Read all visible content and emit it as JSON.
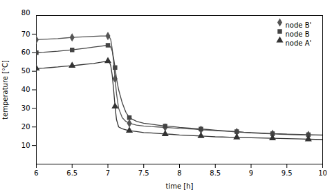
{
  "chart_data": {
    "type": "line",
    "xlabel": "time [h]",
    "ylabel": "temperature [°C]",
    "xlim": [
      6,
      10
    ],
    "ylim": [
      0,
      80
    ],
    "xticks": [
      6,
      6.5,
      7,
      7.5,
      8,
      8.5,
      9,
      9.5,
      10
    ],
    "yticks": [
      10,
      20,
      30,
      40,
      50,
      60,
      70
    ],
    "annotations": [
      "80"
    ],
    "legend": "upper right",
    "grid": false,
    "x": [
      6.0,
      6.1,
      6.2,
      6.3,
      6.4,
      6.5,
      6.6,
      6.7,
      6.8,
      6.9,
      7.0,
      7.02,
      7.04,
      7.06,
      7.08,
      7.1,
      7.12,
      7.15,
      7.2,
      7.25,
      7.3,
      7.4,
      7.5,
      7.6,
      7.7,
      7.8,
      7.9,
      8.0,
      8.1,
      8.2,
      8.3,
      8.4,
      8.5,
      8.6,
      8.7,
      8.8,
      8.9,
      9.0,
      9.1,
      9.2,
      9.3,
      9.4,
      9.5,
      9.6,
      9.7,
      9.8,
      9.9,
      10.0
    ],
    "series": [
      {
        "name": "node B'",
        "color": "#555555",
        "marker": "diamond",
        "values": [
          67,
          67.2,
          67.4,
          67.6,
          67.9,
          68.2,
          68.4,
          68.6,
          68.8,
          69.0,
          69.0,
          68.5,
          67.0,
          62.0,
          55.0,
          46.0,
          38.0,
          30.0,
          25.0,
          23.0,
          22.0,
          21.0,
          20.5,
          20.2,
          20.0,
          19.8,
          19.5,
          19.2,
          19.0,
          18.8,
          18.5,
          18.3,
          18.0,
          17.8,
          17.6,
          17.3,
          17.1,
          16.8,
          16.6,
          16.4,
          16.3,
          16.1,
          16.0,
          15.9,
          15.8,
          15.7,
          15.7,
          15.6
        ]
      },
      {
        "name": "node B",
        "color": "#444444",
        "marker": "square",
        "values": [
          60,
          60.2,
          60.5,
          60.8,
          61.2,
          61.5,
          62.0,
          62.5,
          63.0,
          63.5,
          64.0,
          63.8,
          63.0,
          61.0,
          57.0,
          52.0,
          46.0,
          40.0,
          33.0,
          28.0,
          25.0,
          23.0,
          22.0,
          21.5,
          21.0,
          20.5,
          20.2,
          19.8,
          19.5,
          19.2,
          18.9,
          18.6,
          18.3,
          18.0,
          17.7,
          17.5,
          17.2,
          17.0,
          16.8,
          16.6,
          16.4,
          16.3,
          16.1,
          16.0,
          15.9,
          15.8,
          15.7,
          15.7
        ]
      },
      {
        "name": "node A'",
        "color": "#333333",
        "marker": "triangle",
        "values": [
          51.5,
          51.7,
          52.0,
          52.3,
          52.7,
          53.0,
          53.4,
          53.8,
          54.2,
          54.8,
          55.5,
          55.0,
          53.0,
          48.0,
          40.0,
          31.0,
          24.0,
          20.0,
          19.0,
          18.5,
          18.0,
          17.5,
          17.0,
          16.8,
          16.5,
          16.2,
          16.0,
          15.7,
          15.5,
          15.3,
          15.1,
          14.9,
          14.7,
          14.6,
          14.5,
          14.4,
          14.3,
          14.2,
          14.1,
          14.0,
          13.9,
          13.8,
          13.7,
          13.6,
          13.5,
          13.4,
          13.3,
          13.2
        ]
      }
    ]
  }
}
